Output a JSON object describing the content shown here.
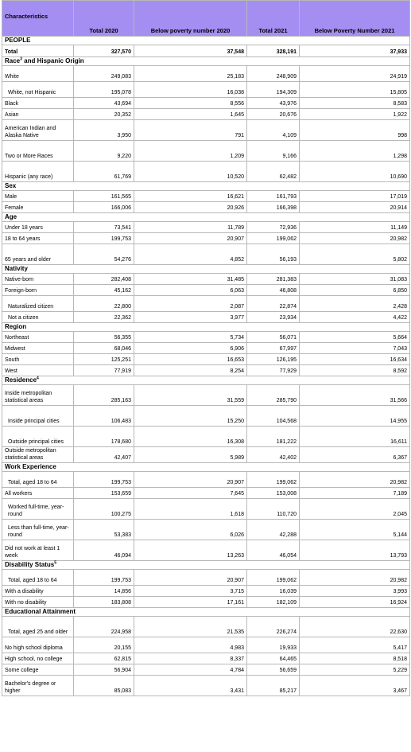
{
  "headers": [
    "Characteristics",
    "Total 2020",
    "Below poverty number 2020",
    "Total 2021",
    "Below Poverty Number 2021"
  ],
  "rows": [
    {
      "type": "section",
      "label": "PEOPLE",
      "h": 10
    },
    {
      "type": "data",
      "bold": true,
      "label": "Total",
      "cells": [
        "327,570",
        "37,548",
        "328,191",
        "37,933"
      ],
      "h": 15
    },
    {
      "type": "section",
      "label": "Race",
      "sup": "3",
      "suffix": " and Hispanic Origin",
      "h": 11
    },
    {
      "type": "data",
      "label": "White",
      "cells": [
        "249,083",
        "25,183",
        "248,909",
        "24,919"
      ],
      "h": 20
    },
    {
      "type": "data",
      "indent": true,
      "label": "White, not Hispanic",
      "cells": [
        "195,078",
        "16,038",
        "194,309",
        "15,805"
      ],
      "h": 20
    },
    {
      "type": "data",
      "label": "Black",
      "cells": [
        "43,694",
        "8,556",
        "43,976",
        "8,583"
      ],
      "h": 14
    },
    {
      "type": "data",
      "label": "Asian",
      "cells": [
        "20,352",
        "1,645",
        "20,676",
        "1,922"
      ],
      "h": 14
    },
    {
      "type": "data",
      "label": "American Indian and Alaska Native",
      "cells": [
        "3,950",
        "791",
        "4,109",
        "998"
      ],
      "h": 26
    },
    {
      "type": "data",
      "label": "Two or More Races",
      "cells": [
        "9,220",
        "1,209",
        "9,166",
        "1,298"
      ],
      "h": 26
    },
    {
      "type": "data",
      "label": "Hispanic (any race)",
      "cells": [
        "61,769",
        "10,520",
        "62,482",
        "10,690"
      ],
      "h": 26
    },
    {
      "type": "section",
      "label": "Sex",
      "h": 11
    },
    {
      "type": "data",
      "label": "Male",
      "cells": [
        "161,565",
        "16,621",
        "161,793",
        "17,019"
      ],
      "h": 14
    },
    {
      "type": "data",
      "label": "Female",
      "cells": [
        "166,006",
        "20,926",
        "166,398",
        "20,914"
      ],
      "h": 14
    },
    {
      "type": "section",
      "label": "Age",
      "h": 11
    },
    {
      "type": "data",
      "label": "Under 18 years",
      "cells": [
        "73,541",
        "11,789",
        "72,936",
        "11,149"
      ],
      "h": 14
    },
    {
      "type": "data",
      "label": "18 to 64 years",
      "cells": [
        "199,753",
        "20,907",
        "199,062",
        "20,982"
      ],
      "h": 14
    },
    {
      "type": "data",
      "label": "65 years and older",
      "cells": [
        "54,276",
        "4,852",
        "56,193",
        "5,802"
      ],
      "h": 26
    },
    {
      "type": "section",
      "label": "Nativity",
      "h": 11
    },
    {
      "type": "data",
      "label": "Native-born",
      "cells": [
        "282,408",
        "31,485",
        "281,383",
        "31,083"
      ],
      "h": 14
    },
    {
      "type": "data",
      "label": "Foreign-born",
      "cells": [
        "45,162",
        "6,063",
        "46,808",
        "6,850"
      ],
      "h": 14
    },
    {
      "type": "data",
      "indent": true,
      "label": "Naturalized citizen",
      "cells": [
        "22,800",
        "2,087",
        "22,874",
        "2,428"
      ],
      "h": 20
    },
    {
      "type": "data",
      "indent": true,
      "label": "Not a citizen",
      "cells": [
        "22,362",
        "3,977",
        "23,934",
        "4,422"
      ],
      "h": 14
    },
    {
      "type": "section",
      "label": "Region",
      "h": 11
    },
    {
      "type": "data",
      "label": "Northeast",
      "cells": [
        "56,355",
        "5,734",
        "56,071",
        "5,664"
      ],
      "h": 14
    },
    {
      "type": "data",
      "label": "Midwest",
      "cells": [
        "68,046",
        "6,906",
        "67,997",
        "7,043"
      ],
      "h": 14
    },
    {
      "type": "data",
      "label": "South",
      "cells": [
        "125,251",
        "16,653",
        "126,195",
        "16,634"
      ],
      "h": 14
    },
    {
      "type": "data",
      "label": "West",
      "cells": [
        "77,919",
        "8,254",
        "77,929",
        "8,592"
      ],
      "h": 14
    },
    {
      "type": "section",
      "label": "Residence",
      "sup": "4",
      "suffix": "",
      "h": 11
    },
    {
      "type": "data",
      "label": "Inside metropolitan statistical areas",
      "cells": [
        "285,163",
        "31,559",
        "285,790",
        "31,566"
      ],
      "h": 26
    },
    {
      "type": "data",
      "indent": true,
      "label": "Inside principal cities",
      "cells": [
        "106,483",
        "15,250",
        "104,568",
        "14,955"
      ],
      "h": 26
    },
    {
      "type": "data",
      "indent": true,
      "label": "Outside principal cities",
      "cells": [
        "178,680",
        "16,308",
        "181,222",
        "16,611"
      ],
      "h": 26
    },
    {
      "type": "data",
      "label": "Outside metropolitan statistical areas",
      "cells": [
        "42,407",
        "5,989",
        "42,402",
        "6,367"
      ],
      "h": 20
    },
    {
      "type": "section",
      "label": "Work Experience",
      "h": 11
    },
    {
      "type": "data",
      "indent": true,
      "label": "Total, aged 18 to 64",
      "cells": [
        "199,753",
        "20,907",
        "199,062",
        "20,982"
      ],
      "h": 20
    },
    {
      "type": "data",
      "label": "All workers",
      "cells": [
        "153,659",
        "7,645",
        "153,008",
        "7,189"
      ],
      "h": 14
    },
    {
      "type": "data",
      "indent": true,
      "label": "Worked full-time, year-round",
      "cells": [
        "100,275",
        "1,618",
        "110,720",
        "2,045"
      ],
      "h": 26
    },
    {
      "type": "data",
      "indent": true,
      "label": "Less than full-time, year-round",
      "cells": [
        "53,383",
        "6,026",
        "42,288",
        "5,144"
      ],
      "h": 26
    },
    {
      "type": "data",
      "label": "Did not work at least 1 week",
      "cells": [
        "46,094",
        "13,263",
        "46,054",
        "13,793"
      ],
      "h": 26
    },
    {
      "type": "section",
      "label": "Disability Status",
      "sup": "5",
      "suffix": "",
      "h": 11
    },
    {
      "type": "data",
      "indent": true,
      "label": "Total, aged 18 to 64",
      "cells": [
        "199,753",
        "20,907",
        "199,062",
        "20,982"
      ],
      "h": 20
    },
    {
      "type": "data",
      "label": "With a disability",
      "cells": [
        "14,856",
        "3,715",
        "16,039",
        "3,993"
      ],
      "h": 14
    },
    {
      "type": "data",
      "label": "With no disability",
      "cells": [
        "183,808",
        "17,161",
        "182,109",
        "16,924"
      ],
      "h": 14
    },
    {
      "type": "section",
      "label": "Educational Attainment",
      "h": 11
    },
    {
      "type": "data",
      "indent": true,
      "label": "Total, aged 25 and older",
      "cells": [
        "224,958",
        "21,535",
        "226,274",
        "22,630"
      ],
      "h": 26
    },
    {
      "type": "data",
      "label": "No high school diploma",
      "cells": [
        "20,155",
        "4,983",
        "19,933",
        "5,417"
      ],
      "h": 20
    },
    {
      "type": "data",
      "label": "High school, no college",
      "cells": [
        "62,815",
        "8,337",
        "64,465",
        "8,518"
      ],
      "h": 14
    },
    {
      "type": "data",
      "label": "Some college",
      "cells": [
        "56,904",
        "4,784",
        "56,659",
        "5,229"
      ],
      "h": 14
    },
    {
      "type": "data",
      "label": "Bachelor's degree or higher",
      "cells": [
        "85,083",
        "3,431",
        "85,217",
        "3,467"
      ],
      "h": 26
    }
  ]
}
